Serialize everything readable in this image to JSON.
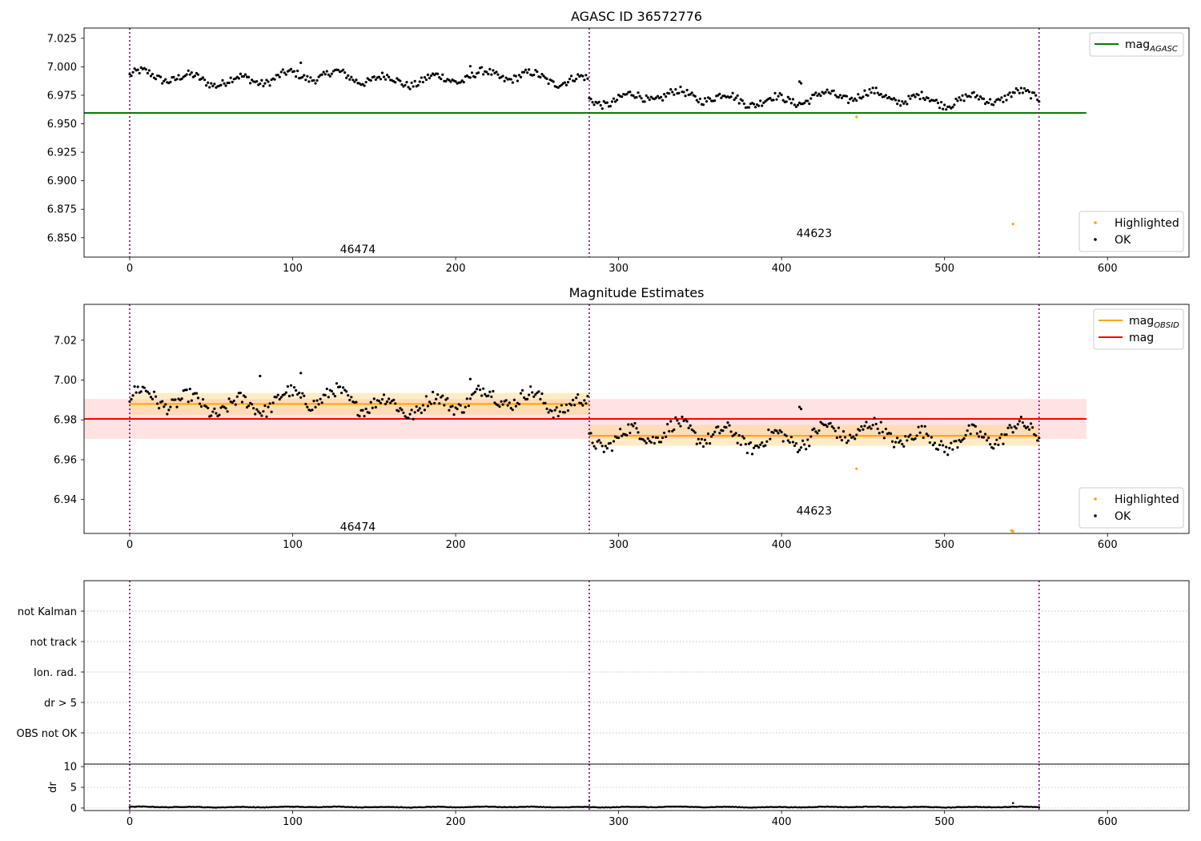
{
  "figure": {
    "title": "AGASC ID 36572776"
  },
  "chart_data": [
    {
      "type": "scatter",
      "title": "AGASC ID 36572776",
      "xlabel": "",
      "ylabel": "",
      "xlim": [
        -28,
        650
      ],
      "ylim": [
        6.833,
        7.034
      ],
      "x_ticks": [
        0,
        100,
        200,
        300,
        400,
        500,
        600
      ],
      "y_ticks": [
        6.85,
        6.875,
        6.9,
        6.925,
        6.95,
        6.975,
        7.0,
        7.025
      ],
      "y_tick_decimals": 3,
      "obsid_boundaries": [
        0,
        282,
        558
      ],
      "obsid_labels": [
        {
          "text": "46474",
          "x": 140,
          "y": 6.84
        },
        {
          "text": "44623",
          "x": 420,
          "y": 6.854
        }
      ],
      "lines": [
        {
          "name": "mag_AGASC",
          "color": "#008000",
          "x": [
            -28,
            587
          ],
          "y": [
            6.9595,
            6.9595
          ]
        }
      ],
      "series": [
        {
          "name": "OK",
          "color": "#000000",
          "segments": [
            {
              "x0": 0,
              "x1": 281,
              "mean": 6.99,
              "amplitude": 0.0075
            },
            {
              "x0": 282,
              "x1": 558,
              "mean": 6.9725,
              "amplitude": 0.0075
            }
          ],
          "extra_points": [
            [
              411,
              6.987
            ],
            [
              412,
              6.9855
            ],
            [
              105,
              7.0035
            ],
            [
              209,
              7.0005
            ]
          ]
        },
        {
          "name": "Highlighted",
          "color": "#ffa500",
          "points": [
            [
              446,
              6.956
            ],
            [
              542,
              6.862
            ]
          ]
        }
      ],
      "legends": [
        {
          "position": "top-right",
          "entries": [
            {
              "label": "mag",
              "sub": "AGASC",
              "kind": "line",
              "color": "#008000"
            }
          ]
        },
        {
          "position": "bottom-right",
          "entries": [
            {
              "label": "Highlighted",
              "kind": "point",
              "color": "#ffa500"
            },
            {
              "label": "OK",
              "kind": "point",
              "color": "#000000"
            }
          ]
        }
      ]
    },
    {
      "type": "scatter",
      "title": "Magnitude Estimates",
      "xlabel": "",
      "ylabel": "",
      "xlim": [
        -28,
        650
      ],
      "ylim": [
        6.923,
        7.038
      ],
      "x_ticks": [
        0,
        100,
        200,
        300,
        400,
        500,
        600
      ],
      "y_ticks": [
        6.94,
        6.96,
        6.98,
        7.0,
        7.02
      ],
      "y_tick_decimals": 2,
      "obsid_boundaries": [
        0,
        282,
        558
      ],
      "obsid_labels": [
        {
          "text": "46474",
          "x": 140,
          "y": 6.9265
        },
        {
          "text": "44623",
          "x": 420,
          "y": 6.9345
        }
      ],
      "bands": [
        {
          "color": "#ffb0b0",
          "opacity": 0.35,
          "x": [
            -28,
            587
          ],
          "y_low": 6.9705,
          "y_high": 6.9905
        },
        {
          "color": "#ffd27f",
          "opacity": 0.45,
          "x": [
            0,
            282
          ],
          "y_low": 6.9825,
          "y_high": 6.9935
        },
        {
          "color": "#ffd27f",
          "opacity": 0.45,
          "x": [
            282,
            558
          ],
          "y_low": 6.967,
          "y_high": 6.9775
        }
      ],
      "lines": [
        {
          "name": "mag",
          "color": "#ff0000",
          "x": [
            -28,
            587
          ],
          "y": [
            6.9805,
            6.9805
          ]
        },
        {
          "name": "mag_OBSID",
          "color": "#ffa500",
          "x": [
            0,
            282
          ],
          "y": [
            6.988,
            6.988
          ]
        },
        {
          "name": "mag_OBSID",
          "color": "#ffa500",
          "x": [
            282,
            558
          ],
          "y": [
            6.972,
            6.972
          ]
        }
      ],
      "series": [
        {
          "name": "OK",
          "color": "#000000",
          "segments": [
            {
              "x0": 0,
              "x1": 281,
              "mean": 6.989,
              "amplitude": 0.0075
            },
            {
              "x0": 282,
              "x1": 558,
              "mean": 6.972,
              "amplitude": 0.0075
            }
          ],
          "extra_points": [
            [
              411,
              6.9865
            ],
            [
              412,
              6.9855
            ],
            [
              105,
              7.0035
            ],
            [
              209,
              7.0005
            ],
            [
              80,
              7.002
            ]
          ]
        },
        {
          "name": "Highlighted",
          "color": "#ffa500",
          "points": [
            [
              446,
              6.9555
            ],
            [
              541,
              6.9245
            ],
            [
              542,
              6.924
            ]
          ]
        }
      ],
      "legends": [
        {
          "position": "top-right",
          "entries": [
            {
              "label": "mag",
              "sub": "OBSID",
              "kind": "line",
              "color": "#ffa500"
            },
            {
              "label": "mag",
              "kind": "line",
              "color": "#ff0000"
            }
          ]
        },
        {
          "position": "bottom-right",
          "entries": [
            {
              "label": "Highlighted",
              "kind": "point",
              "color": "#ffa500"
            },
            {
              "label": "OK",
              "kind": "point",
              "color": "#000000"
            }
          ]
        }
      ]
    },
    {
      "type": "flags",
      "title": "",
      "xlim": [
        -28,
        650
      ],
      "categories": [
        "not Kalman",
        "not track",
        "Ion. rad.",
        "dr > 5",
        "OBS not OK"
      ],
      "obsid_boundaries": [
        0,
        282,
        558
      ],
      "grid": true
    },
    {
      "type": "scatter",
      "title": "",
      "xlabel": "",
      "ylabel": "dr",
      "xlim": [
        -28,
        650
      ],
      "ylim": [
        -0.6,
        10.6
      ],
      "x_ticks": [
        0,
        100,
        200,
        300,
        400,
        500,
        600
      ],
      "y_ticks": [
        0,
        5,
        10
      ],
      "y_tick_decimals": 0,
      "obsid_boundaries": [
        0,
        282,
        558
      ],
      "series": [
        {
          "name": "dr",
          "color": "#000000",
          "points_range": [
            0,
            558
          ],
          "mean": 0.25,
          "amplitude": 0.12,
          "extra_points": [
            [
              282,
              1.8
            ],
            [
              542,
              1.2
            ]
          ]
        }
      ]
    }
  ]
}
